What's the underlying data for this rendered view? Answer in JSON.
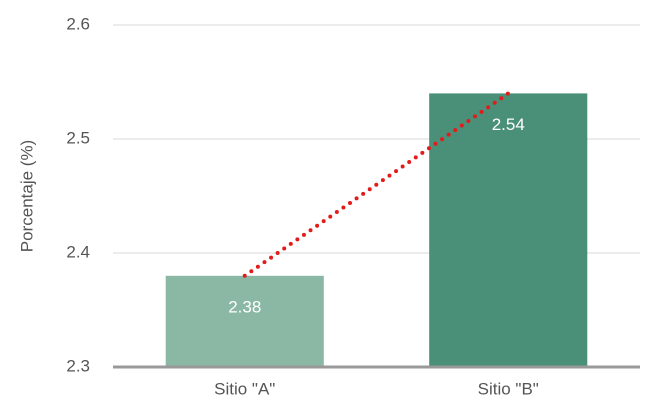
{
  "chart_data": {
    "type": "bar",
    "y_label": "Porcentaje (%)",
    "categories": [
      "Sitio \"A\"",
      "Sitio \"B\""
    ],
    "values": [
      2.38,
      2.54
    ],
    "colors": [
      "#8ab8a5",
      "#4a8f78"
    ],
    "ylim": [
      2.3,
      2.6
    ],
    "yticks": [
      2.3,
      2.4,
      2.5,
      2.6
    ],
    "grid": true,
    "trend_line_color": "#e31b1b"
  }
}
